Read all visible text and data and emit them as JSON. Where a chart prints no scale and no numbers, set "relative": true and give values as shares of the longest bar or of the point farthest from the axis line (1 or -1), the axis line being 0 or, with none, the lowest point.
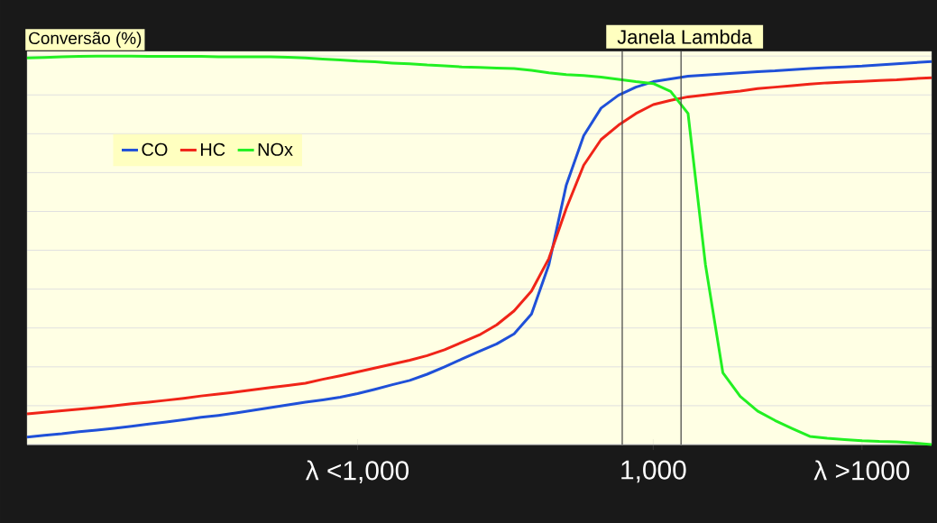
{
  "chart_data": {
    "type": "line",
    "relative": true,
    "ylabel": "Conversão (%)",
    "categories": [
      null,
      null,
      null,
      null,
      null,
      null,
      null,
      null,
      null,
      null,
      null,
      null,
      null,
      null,
      null,
      null,
      null,
      null,
      null,
      "λ <1,000",
      null,
      null,
      null,
      null,
      null,
      null,
      null,
      null,
      null,
      null,
      null,
      null,
      null,
      null,
      null,
      null,
      "1,000",
      null,
      null,
      null,
      null,
      null,
      null,
      null,
      null,
      null,
      null,
      null,
      "λ >1000",
      null,
      null,
      null,
      null
    ],
    "series": [
      {
        "name": "CO",
        "color": "#1f50d8",
        "values": [
          0.019,
          0.024,
          0.028,
          0.033,
          0.037,
          0.042,
          0.047,
          0.053,
          0.058,
          0.064,
          0.07,
          0.075,
          0.081,
          0.088,
          0.095,
          0.102,
          0.109,
          0.115,
          0.122,
          0.131,
          0.142,
          0.154,
          0.165,
          0.181,
          0.2,
          0.22,
          0.24,
          0.259,
          0.285,
          0.336,
          0.463,
          0.668,
          0.795,
          0.866,
          0.899,
          0.92,
          0.934,
          0.941,
          0.948,
          0.951,
          0.954,
          0.957,
          0.96,
          0.962,
          0.965,
          0.968,
          0.97,
          0.972,
          0.974,
          0.977,
          0.98,
          0.983,
          0.986
        ]
      },
      {
        "name": "HC",
        "color": "#f02418",
        "values": [
          0.079,
          0.083,
          0.087,
          0.091,
          0.095,
          0.1,
          0.105,
          0.109,
          0.114,
          0.119,
          0.125,
          0.13,
          0.135,
          0.141,
          0.147,
          0.152,
          0.158,
          0.168,
          0.177,
          0.187,
          0.197,
          0.207,
          0.217,
          0.229,
          0.244,
          0.263,
          0.282,
          0.308,
          0.344,
          0.395,
          0.479,
          0.608,
          0.719,
          0.785,
          0.822,
          0.852,
          0.875,
          0.886,
          0.895,
          0.9,
          0.905,
          0.91,
          0.916,
          0.92,
          0.924,
          0.928,
          0.931,
          0.933,
          0.935,
          0.937,
          0.939,
          0.942,
          0.944
        ]
      },
      {
        "name": "NOx",
        "color": "#22f022",
        "values": [
          0.995,
          0.996,
          0.998,
          0.999,
          1.0,
          1.0,
          1.0,
          0.999,
          0.999,
          0.999,
          0.999,
          0.998,
          0.998,
          0.998,
          0.998,
          0.997,
          0.995,
          0.992,
          0.99,
          0.987,
          0.985,
          0.982,
          0.98,
          0.977,
          0.975,
          0.972,
          0.971,
          0.969,
          0.968,
          0.963,
          0.957,
          0.952,
          0.95,
          0.946,
          0.94,
          0.934,
          0.929,
          0.909,
          0.852,
          0.463,
          0.185,
          0.124,
          0.086,
          0.062,
          0.041,
          0.021,
          0.016,
          0.013,
          0.01,
          0.008,
          0.007,
          0.004,
          0
        ]
      }
    ],
    "annotations": [
      "Janela Lambda"
    ],
    "grid": "y",
    "legend": "top left",
    "marker": "none",
    "line_style": "solid"
  }
}
